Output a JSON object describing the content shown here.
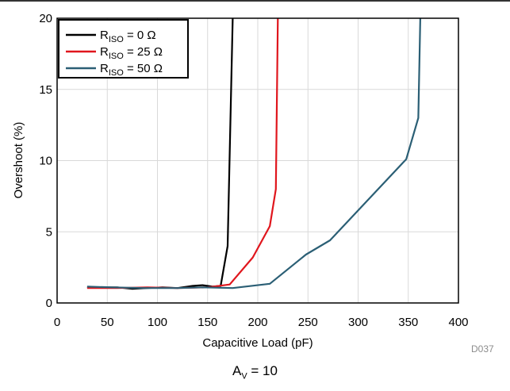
{
  "chart_data": {
    "type": "line",
    "xlabel": "Capacitive Load (pF)",
    "ylabel": "Overshoot (%)",
    "xlim": [
      0,
      400
    ],
    "ylim": [
      0,
      20
    ],
    "x_ticks": [
      0,
      50,
      100,
      150,
      200,
      250,
      300,
      350,
      400
    ],
    "y_ticks": [
      0,
      5,
      10,
      15,
      20
    ],
    "grid": true,
    "legend_position": "top-left",
    "series": [
      {
        "name_main": "R",
        "name_sub": "ISO",
        "name_rest": " = 0 Ω",
        "color": "#000000",
        "points": [
          [
            30,
            1.1
          ],
          [
            45,
            1.1
          ],
          [
            60,
            1.1
          ],
          [
            75,
            1.0
          ],
          [
            90,
            1.05
          ],
          [
            105,
            1.1
          ],
          [
            120,
            1.05
          ],
          [
            135,
            1.2
          ],
          [
            145,
            1.25
          ],
          [
            155,
            1.15
          ],
          [
            163,
            1.2
          ],
          [
            170,
            4.0
          ],
          [
            175,
            20
          ]
        ]
      },
      {
        "name_main": "R",
        "name_sub": "ISO",
        "name_rest": " = 25 Ω",
        "color": "#e0161d",
        "points": [
          [
            30,
            1.05
          ],
          [
            60,
            1.05
          ],
          [
            90,
            1.1
          ],
          [
            120,
            1.05
          ],
          [
            150,
            1.1
          ],
          [
            172,
            1.3
          ],
          [
            195,
            3.2
          ],
          [
            212,
            5.4
          ],
          [
            218,
            8.0
          ],
          [
            220,
            20
          ]
        ]
      },
      {
        "name_main": "R",
        "name_sub": "ISO",
        "name_rest": " = 50 Ω",
        "color": "#2b5f75",
        "points": [
          [
            30,
            1.15
          ],
          [
            55,
            1.1
          ],
          [
            85,
            1.05
          ],
          [
            120,
            1.05
          ],
          [
            145,
            1.1
          ],
          [
            175,
            1.05
          ],
          [
            212,
            1.35
          ],
          [
            248,
            3.4
          ],
          [
            272,
            4.4
          ],
          [
            348,
            10.1
          ],
          [
            360,
            13.0
          ],
          [
            362,
            20
          ]
        ]
      }
    ],
    "chart_code": "D037"
  },
  "footer": {
    "label_main": "A",
    "label_sub": "V",
    "label_rest": " = 10"
  }
}
